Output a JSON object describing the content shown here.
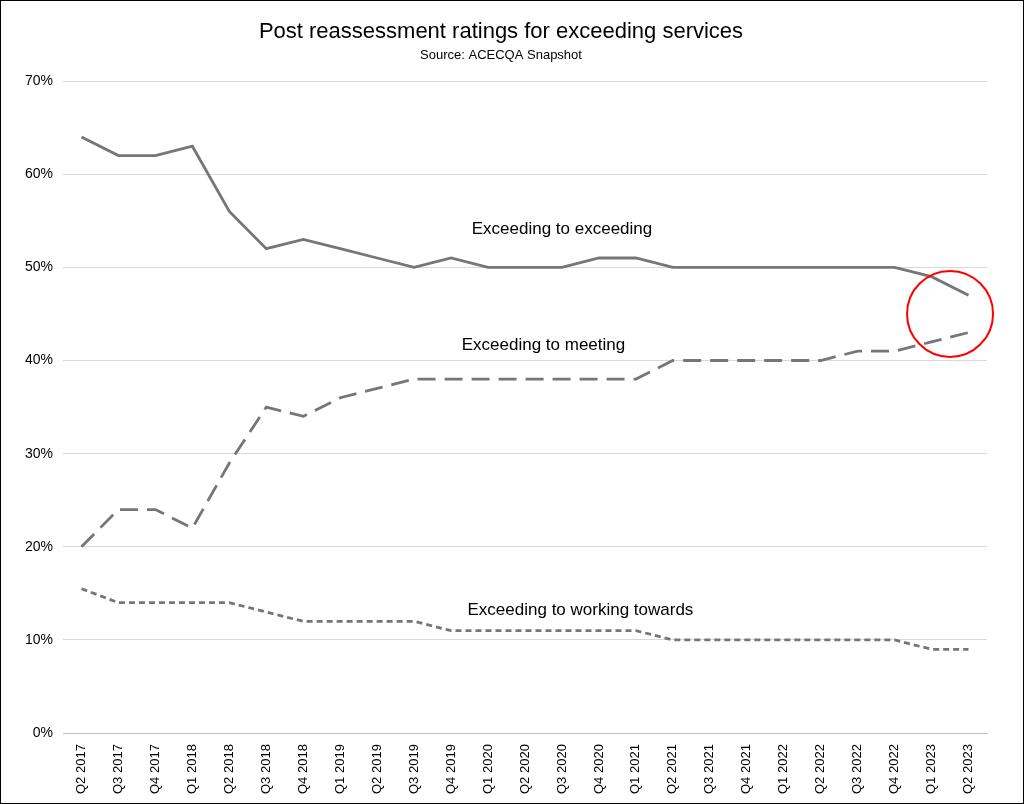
{
  "chart_data": {
    "type": "line",
    "title": "Post reassessment ratings for exceeding services",
    "subtitle": "Source: ACECQA Snapshot",
    "categories": [
      "Q2 2017",
      "Q3 2017",
      "Q4 2017",
      "Q1 2018",
      "Q2 2018",
      "Q3 2018",
      "Q4 2018",
      "Q1 2019",
      "Q2 2019",
      "Q3 2019",
      "Q4 2019",
      "Q1 2020",
      "Q2 2020",
      "Q3 2020",
      "Q4 2020",
      "Q1 2021",
      "Q2 2021",
      "Q3 2021",
      "Q4 2021",
      "Q1 2022",
      "Q2 2022",
      "Q3 2022",
      "Q4 2022",
      "Q1 2023",
      "Q2 2023"
    ],
    "series": [
      {
        "name": "Exceeding to exceeding",
        "color": "#767676",
        "line_style": "solid",
        "values": [
          64,
          62,
          62,
          63,
          56,
          52,
          53,
          52,
          51,
          50,
          51,
          50,
          50,
          50,
          51,
          51,
          50,
          50,
          50,
          50,
          50,
          50,
          50,
          49,
          47
        ]
      },
      {
        "name": "Exceeding to meeting",
        "color": "#767676",
        "line_style": "long_dash",
        "values": [
          20,
          24,
          24,
          22,
          29,
          35,
          34,
          36,
          37,
          38,
          38,
          38,
          38,
          38,
          38,
          38,
          40,
          40,
          40,
          40,
          40,
          41,
          41,
          42,
          43
        ]
      },
      {
        "name": "Exceeding to working towards",
        "color": "#767676",
        "line_style": "short_dash",
        "values": [
          15.5,
          14,
          14,
          14,
          14,
          13,
          12,
          12,
          12,
          12,
          11,
          11,
          11,
          11,
          11,
          11,
          10,
          10,
          10,
          10,
          10,
          10,
          10,
          9,
          9
        ]
      }
    ],
    "ylim": [
      0,
      70
    ],
    "yticks": [
      {
        "value": 0,
        "label": "0%"
      },
      {
        "value": 10,
        "label": "10%"
      },
      {
        "value": 20,
        "label": "20%"
      },
      {
        "value": 30,
        "label": "30%"
      },
      {
        "value": 40,
        "label": "40%"
      },
      {
        "value": 50,
        "label": "50%"
      },
      {
        "value": 60,
        "label": "60%"
      },
      {
        "value": 70,
        "label": "70%"
      }
    ],
    "grid": true
  }
}
